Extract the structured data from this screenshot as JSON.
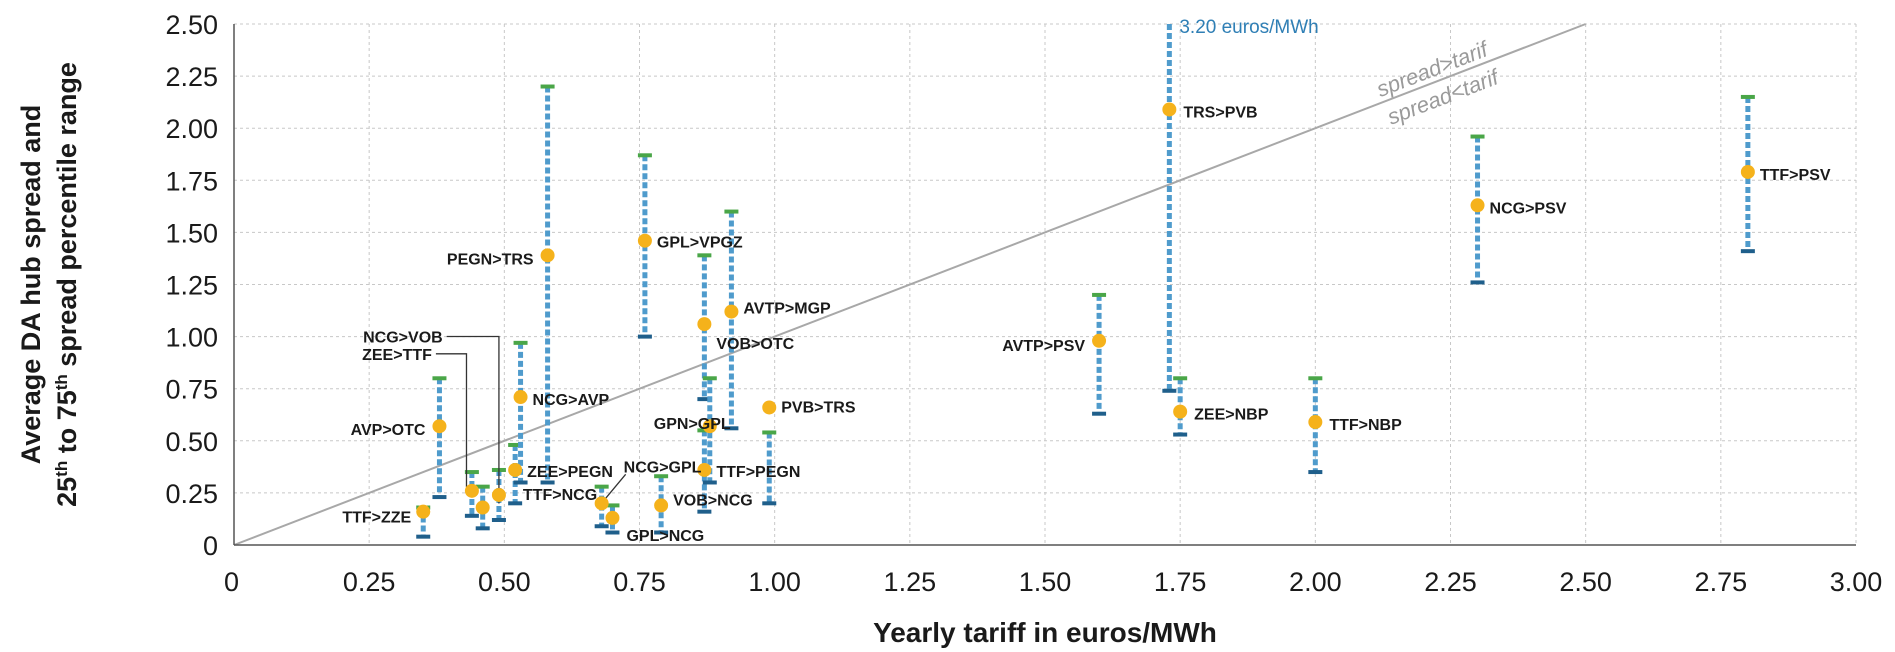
{
  "chart_data": {
    "type": "scatter",
    "title": "",
    "xlabel": "Yearly tariff in euros/MWh",
    "ylabel_line1": "Average DA hub spread and",
    "ylabel_line2": [
      "25",
      "th",
      " to 75",
      "th",
      " spread percentile range"
    ],
    "xlim": [
      0,
      3.0
    ],
    "ylim": [
      0,
      2.5
    ],
    "xticks": [
      "0",
      "0.25",
      "0.50",
      "0.75",
      "1.00",
      "1.25",
      "1.50",
      "1.75",
      "2.00",
      "2.25",
      "2.50",
      "2.75",
      "3.00"
    ],
    "yticks": [
      "0",
      "0.25",
      "0.50",
      "0.75",
      "1.00",
      "1.25",
      "1.50",
      "1.75",
      "2.00",
      "2.25",
      "2.50"
    ],
    "grid": true,
    "reference_line": {
      "label_above": "spread>tarif",
      "label_below": "spread<tarif"
    },
    "annotation": "3.20 euros/MWh",
    "colors": {
      "point": "#f5b21b",
      "range_bar": "#4f9bcc",
      "upper_cap": "#4aa648",
      "lower_cap": "#1f5f8b",
      "grid": "#c8c8c8",
      "diagonal": "#a8a8a8",
      "annotation": "#2f7fb5"
    },
    "points": [
      {
        "label": "TTF>ZZE",
        "x": 0.35,
        "y": 0.16,
        "p25": 0.04,
        "p75": 0.18
      },
      {
        "label": "AVP>OTC",
        "x": 0.38,
        "y": 0.57,
        "p25": 0.23,
        "p75": 0.8
      },
      {
        "label": "ZEE>TTF",
        "x": 0.44,
        "y": 0.26,
        "p25": 0.14,
        "p75": 0.35
      },
      {
        "label": "NCG>VOB",
        "x": 0.46,
        "y": 0.18,
        "p25": 0.08,
        "p75": 0.28
      },
      {
        "label": "TTF>NCG",
        "x": 0.49,
        "y": 0.24,
        "p25": 0.12,
        "p75": 0.36
      },
      {
        "label": "ZEE>PEGN",
        "x": 0.52,
        "y": 0.36,
        "p25": 0.2,
        "p75": 0.48
      },
      {
        "label": "NCG>AVP",
        "x": 0.53,
        "y": 0.71,
        "p25": 0.3,
        "p75": 0.97
      },
      {
        "label": "PEGN>TRS",
        "x": 0.58,
        "y": 1.39,
        "p25": 0.3,
        "p75": 2.2
      },
      {
        "label": "NCG>GPL",
        "x": 0.68,
        "y": 0.2,
        "p25": 0.09,
        "p75": 0.28
      },
      {
        "label": "GPL>NCG",
        "x": 0.7,
        "y": 0.13,
        "p25": 0.06,
        "p75": 0.19
      },
      {
        "label": "GPL>VPGZ",
        "x": 0.76,
        "y": 1.46,
        "p25": 1.0,
        "p75": 1.87
      },
      {
        "label": "VOB>NCG",
        "x": 0.79,
        "y": 0.19,
        "p25": 0.06,
        "p75": 0.33
      },
      {
        "label": "VOB>OTC",
        "x": 0.87,
        "y": 1.06,
        "p25": 0.7,
        "p75": 1.39
      },
      {
        "label": "TTF>PEGN",
        "x": 0.87,
        "y": 0.36,
        "p25": 0.16,
        "p75": 0.55
      },
      {
        "label": "GPN>GPL",
        "x": 0.88,
        "y": 0.57,
        "p25": 0.3,
        "p75": 0.8
      },
      {
        "label": "AVTP>MGP",
        "x": 0.92,
        "y": 1.12,
        "p25": 0.56,
        "p75": 1.6
      },
      {
        "label": "PVB>TRS",
        "x": 0.99,
        "y": 0.66,
        "p25": 0.2,
        "p75": 0.54
      },
      {
        "label": "AVTP>PSV",
        "x": 1.6,
        "y": 0.98,
        "p25": 0.63,
        "p75": 1.2
      },
      {
        "label": "TRS>PVB",
        "x": 1.73,
        "y": 2.09,
        "p25": 0.74,
        "p75": 2.5
      },
      {
        "label": "ZEE>NBP",
        "x": 1.75,
        "y": 0.64,
        "p25": 0.53,
        "p75": 0.8
      },
      {
        "label": "TTF>NBP",
        "x": 2.0,
        "y": 0.59,
        "p25": 0.35,
        "p75": 0.8
      },
      {
        "label": "NCG>PSV",
        "x": 2.3,
        "y": 1.63,
        "p25": 1.26,
        "p75": 1.96
      },
      {
        "label": "TTF>PSV",
        "x": 2.8,
        "y": 1.79,
        "p25": 1.41,
        "p75": 2.15
      }
    ]
  }
}
